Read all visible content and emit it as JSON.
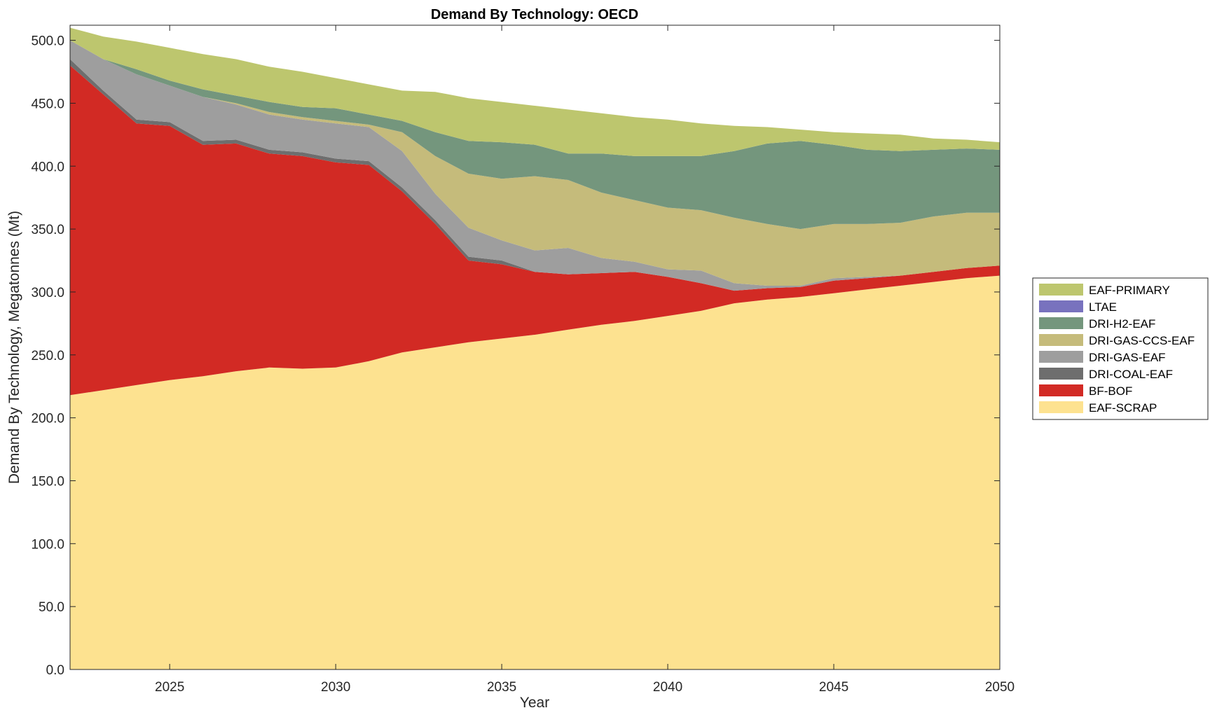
{
  "chart_data": {
    "type": "area",
    "title": "Demand By Technology: OECD",
    "xlabel": "Year",
    "ylabel": "Demand By Technology, Megatonnes (Mt)",
    "xlim": [
      2022,
      2050
    ],
    "ylim": [
      0,
      512
    ],
    "xticks": [
      2025,
      2030,
      2035,
      2040,
      2045,
      2050
    ],
    "yticks": [
      "0.0",
      "50.0",
      "100.0",
      "150.0",
      "200.0",
      "250.0",
      "300.0",
      "350.0",
      "400.0",
      "450.0",
      "500.0"
    ],
    "legend_position": "right",
    "grid": false,
    "x": [
      2022,
      2023,
      2024,
      2025,
      2026,
      2027,
      2028,
      2029,
      2030,
      2031,
      2032,
      2033,
      2034,
      2035,
      2036,
      2037,
      2038,
      2039,
      2040,
      2041,
      2042,
      2043,
      2044,
      2045,
      2046,
      2047,
      2048,
      2049,
      2050
    ],
    "series": [
      {
        "name": "EAF-SCRAP",
        "color": "#FDE290",
        "values": [
          218,
          222,
          226,
          230,
          233,
          237,
          240,
          239,
          240,
          245,
          252,
          256,
          260,
          263,
          266,
          270,
          274,
          277,
          281,
          285,
          291,
          294,
          296,
          299,
          302,
          305,
          308,
          311,
          313
        ]
      },
      {
        "name": "BF-BOF",
        "color": "#D22A24",
        "values": [
          262,
          235,
          208,
          202,
          184,
          181,
          170,
          169,
          163,
          156,
          128,
          98,
          65,
          59,
          50,
          44,
          41,
          39,
          31,
          22,
          10,
          9,
          8,
          10,
          9,
          8,
          8,
          8,
          8
        ]
      },
      {
        "name": "DRI-COAL-EAF",
        "color": "#6E6E6E",
        "values": [
          5,
          3,
          3,
          3,
          3,
          3,
          3,
          3,
          3,
          3,
          3,
          3,
          3,
          3,
          0,
          0,
          0,
          0,
          0,
          0,
          0,
          0,
          0,
          0,
          0,
          0,
          0,
          0,
          0
        ]
      },
      {
        "name": "DRI-GAS-EAF",
        "color": "#9E9E9E",
        "values": [
          15,
          25,
          36,
          29,
          35,
          28,
          28,
          26,
          28,
          27,
          29,
          21,
          23,
          16,
          17,
          21,
          12,
          8,
          6,
          10,
          6,
          2,
          1,
          2,
          1,
          0,
          0,
          0,
          0
        ]
      },
      {
        "name": "DRI-GAS-CCS-EAF",
        "color": "#C5BB7B",
        "values": [
          0,
          0,
          0,
          0,
          0,
          1,
          2,
          2,
          2,
          2,
          15,
          30,
          43,
          49,
          59,
          54,
          52,
          49,
          49,
          48,
          52,
          49,
          45,
          43,
          42,
          42,
          44,
          44,
          42
        ]
      },
      {
        "name": "LTAE",
        "color": "#7872BE",
        "values": [
          0,
          0,
          0,
          0,
          0,
          0,
          0,
          0,
          0,
          0,
          0,
          0,
          0,
          0,
          0,
          0,
          0,
          0,
          0,
          0,
          0,
          0,
          0,
          0,
          0,
          0,
          0,
          0,
          0
        ]
      },
      {
        "name": "DRI-H2-EAF",
        "color": "#74967D",
        "values": [
          0,
          0,
          4,
          4,
          6,
          6,
          8,
          8,
          10,
          8,
          9,
          19,
          26,
          29,
          25,
          21,
          31,
          35,
          41,
          43,
          53,
          64,
          70,
          63,
          59,
          57,
          53,
          51,
          50
        ]
      },
      {
        "name": "EAF-PRIMARY",
        "color": "#BDC66E",
        "values": [
          10,
          18,
          22,
          26,
          28,
          29,
          28,
          28,
          24,
          24,
          24,
          32,
          34,
          32,
          31,
          35,
          32,
          31,
          29,
          26,
          20,
          13,
          9,
          10,
          13,
          13,
          9,
          7,
          6
        ]
      }
    ],
    "legend_order": [
      "EAF-PRIMARY",
      "LTAE",
      "DRI-H2-EAF",
      "DRI-GAS-CCS-EAF",
      "DRI-GAS-EAF",
      "DRI-COAL-EAF",
      "BF-BOF",
      "EAF-SCRAP"
    ]
  }
}
